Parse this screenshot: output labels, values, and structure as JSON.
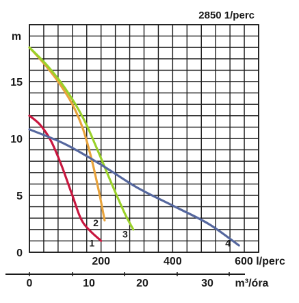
{
  "chart_data": {
    "type": "line",
    "title": "2850 1/perc",
    "ylabel": "m",
    "xlabel_top_unit": "l/perc",
    "xlabel_bottom_unit": "m³/óra",
    "xlim_lpm": [
      0,
      640
    ],
    "ylim": [
      0,
      20
    ],
    "grid": true,
    "y_ticks": [
      {
        "value": 0,
        "label": "0"
      },
      {
        "value": 5,
        "label": "5"
      },
      {
        "value": 10,
        "label": "10"
      },
      {
        "value": 15,
        "label": "15"
      }
    ],
    "x_ticks_top": [
      {
        "value": 200,
        "label": "200"
      },
      {
        "value": 400,
        "label": "400"
      },
      {
        "value": 600,
        "label": "600 l/perc"
      }
    ],
    "x_ticks_bottom": [
      {
        "value": 0,
        "label": "0"
      },
      {
        "value": 10,
        "label": "10"
      },
      {
        "value": 20,
        "label": "20"
      },
      {
        "value": 30,
        "label": "30"
      },
      {
        "value": 40,
        "label": "m³/óra"
      }
    ],
    "series": [
      {
        "name": "1",
        "color": "#c8173f",
        "points": [
          [
            0,
            12
          ],
          [
            30,
            11.2
          ],
          [
            60,
            9.8
          ],
          [
            90,
            7.6
          ],
          [
            120,
            5.0
          ],
          [
            150,
            2.6
          ],
          [
            200,
            1.0
          ]
        ]
      },
      {
        "name": "2",
        "color": "#e8a33c",
        "points": [
          [
            0,
            18
          ],
          [
            40,
            16.6
          ],
          [
            80,
            15.0
          ],
          [
            120,
            13.0
          ],
          [
            150,
            10.8
          ],
          [
            175,
            8.0
          ],
          [
            195,
            5.2
          ],
          [
            210,
            2.8
          ]
        ]
      },
      {
        "name": "3",
        "color": "#9ad12a",
        "points": [
          [
            0,
            18
          ],
          [
            50,
            16.4
          ],
          [
            100,
            14.4
          ],
          [
            150,
            11.8
          ],
          [
            190,
            9.0
          ],
          [
            230,
            6.0
          ],
          [
            265,
            3.5
          ],
          [
            290,
            2.0
          ]
        ]
      },
      {
        "name": "4",
        "color": "#55679e",
        "points": [
          [
            0,
            10.8
          ],
          [
            100,
            9.5
          ],
          [
            200,
            7.7
          ],
          [
            300,
            5.7
          ],
          [
            400,
            4.1
          ],
          [
            500,
            2.5
          ],
          [
            585,
            0.6
          ]
        ]
      }
    ],
    "curve_labels": [
      {
        "series": "1",
        "text": "1",
        "x": 182,
        "y": 0.8
      },
      {
        "series": "2",
        "text": "2",
        "x": 193,
        "y": 2.6
      },
      {
        "series": "3",
        "text": "3",
        "x": 275,
        "y": 1.6
      },
      {
        "series": "4",
        "text": "4",
        "x": 562,
        "y": 0.8
      }
    ]
  }
}
